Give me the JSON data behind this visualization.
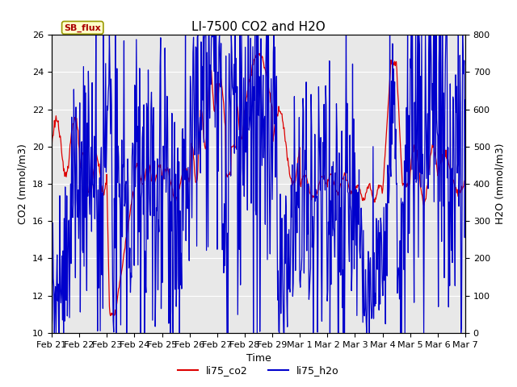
{
  "title": "LI-7500 CO2 and H2O",
  "xlabel": "Time",
  "ylabel_left": "CO2 (mmol/m3)",
  "ylabel_right": "H2O (mmol/m3)",
  "ylim_left": [
    10,
    26
  ],
  "ylim_right": [
    0,
    800
  ],
  "yticks_left": [
    10,
    12,
    14,
    16,
    18,
    20,
    22,
    24,
    26
  ],
  "yticks_right": [
    0,
    100,
    200,
    300,
    400,
    500,
    600,
    700,
    800
  ],
  "xtick_labels": [
    "Feb 21",
    "Feb 22",
    "Feb 23",
    "Feb 24",
    "Feb 25",
    "Feb 26",
    "Feb 27",
    "Feb 28",
    "Feb 29",
    "Mar 1",
    "Mar 2",
    "Mar 3",
    "Mar 4",
    "Mar 5",
    "Mar 6",
    "Mar 7"
  ],
  "color_co2": "#dd0000",
  "color_h2o": "#0000cc",
  "legend_entries": [
    "li75_co2",
    "li75_h2o"
  ],
  "annotation_text": "SB_flux",
  "annotation_bbox_facecolor": "#ffffcc",
  "annotation_bbox_edgecolor": "#999900",
  "background_color": "#e8e8e8",
  "title_fontsize": 11,
  "axis_label_fontsize": 9,
  "tick_fontsize": 8,
  "legend_fontsize": 9,
  "linewidth": 0.9
}
